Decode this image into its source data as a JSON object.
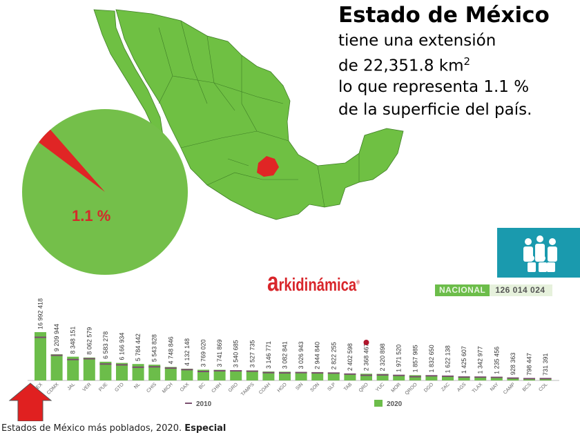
{
  "header": {
    "title": "Estado de México",
    "lines": [
      "tiene una extensión",
      "de 22,351.8 km",
      "lo que representa 1.1 %",
      "de la superficie del país."
    ],
    "superscript": "2"
  },
  "pie": {
    "label": "1.1 %",
    "value_percent": 1.1,
    "colors": {
      "main": "#74bf4a",
      "slice": "#e02525"
    }
  },
  "map": {
    "colors": {
      "country": "#6fc043",
      "highlight": "#e02525",
      "borders": "#3e7d26"
    }
  },
  "logo": {
    "text": "arkidinámica"
  },
  "national": {
    "label": "NACIONAL",
    "value": "126 014 024",
    "icon": "family-icon"
  },
  "chart_data": {
    "type": "bar",
    "categories": [
      "MEX",
      "CDMX",
      "JAL",
      "VER",
      "PUE",
      "GTO",
      "NL",
      "CHIS",
      "MICH",
      "OAX",
      "BC",
      "CHIH",
      "GRO",
      "TAMPS",
      "COAH",
      "HGO",
      "SIN",
      "SON",
      "SLP",
      "TAB",
      "QRO",
      "YUC",
      "MOR",
      "QROO",
      "DGO",
      "ZAC",
      "AGS",
      "TLAX",
      "NAY",
      "CAMP",
      "BCS",
      "COL"
    ],
    "series": [
      {
        "name": "2020",
        "type": "bar",
        "color": "#6cbd4a",
        "values": [
          16992418,
          9209944,
          8348151,
          8062579,
          6583278,
          6166934,
          5784442,
          5543828,
          4748846,
          4132148,
          3769020,
          3741869,
          3540685,
          3527735,
          3146771,
          3082841,
          3026943,
          2944840,
          2822255,
          2402598,
          2368467,
          2320898,
          1971520,
          1857985,
          1832650,
          1622138,
          1425607,
          1342977,
          1235456,
          928363,
          798447,
          731391
        ],
        "labels": [
          "16 992 418",
          "9 209 944",
          "8 348 151",
          "8 062 579",
          "6 583 278",
          "6 166 934",
          "5 784 442",
          "5 543 828",
          "4 748 846",
          "4 132 148",
          "3 769 020",
          "3 741 869",
          "3 540 685",
          "3 527 735",
          "3 146 771",
          "3 082 841",
          "3 026 943",
          "2 944 840",
          "2 822 255",
          "2 402 598",
          "2 368 467",
          "2 320 898",
          "1 971 520",
          "1 857 985",
          "1 832 650",
          "1 622 138",
          "1 425 607",
          "1 342 977",
          "1 235 456",
          "928 363",
          "798 447",
          "731 391"
        ]
      },
      {
        "name": "2010",
        "type": "marker",
        "color": "#7a4e6e",
        "values": [
          15175862,
          8851080,
          7350682,
          7643194,
          5779829,
          5486372,
          4653458,
          4796580,
          4351037,
          3801962,
          3155070,
          3406465,
          3388768,
          3268554,
          2748391,
          2665018,
          2767761,
          2662480,
          2585518,
          2238603,
          1827937,
          1955577,
          1777227,
          1325578,
          1632934,
          1490668,
          1184996,
          1169936,
          1084979,
          822441,
          637026,
          650555
        ]
      }
    ],
    "legend": [
      "2010",
      "2020"
    ],
    "ylim": [
      0,
      17000000
    ],
    "grid": false,
    "highlight_marker_color": "#b0162c",
    "highlight_arrow_color": "#e02020"
  },
  "footer": {
    "text": "Estados de México más poblados, 2020.",
    "bold": "Especial"
  }
}
